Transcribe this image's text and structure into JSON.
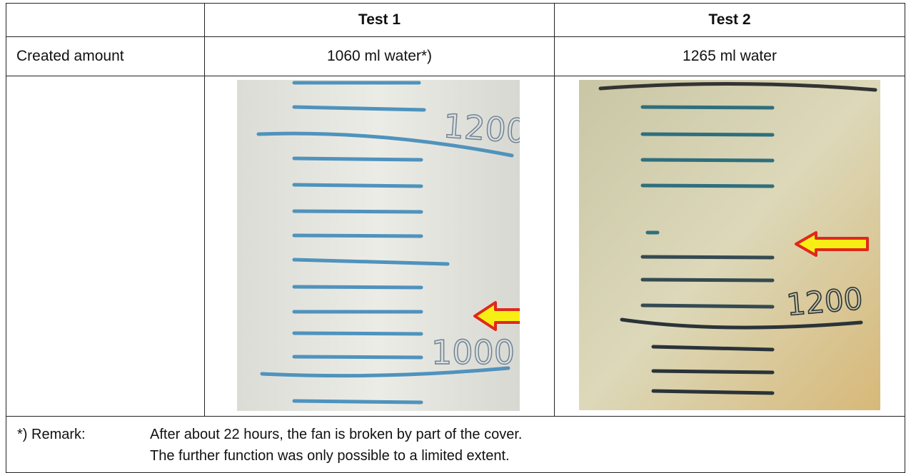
{
  "table": {
    "columns": [
      "Test 1",
      "Test 2"
    ],
    "rows": [
      {
        "label": "Created amount",
        "values": [
          "1060 ml water*)",
          "1265 ml water"
        ]
      }
    ],
    "photos": [
      {
        "marks": [
          "1200",
          "1000"
        ]
      },
      {
        "marks": [
          "1200"
        ]
      }
    ],
    "remark": {
      "label": "*) Remark:",
      "lines": [
        "After about 22 hours, the fan is broken by part of the cover.",
        "The further function was only possible to a limited extent."
      ]
    }
  }
}
